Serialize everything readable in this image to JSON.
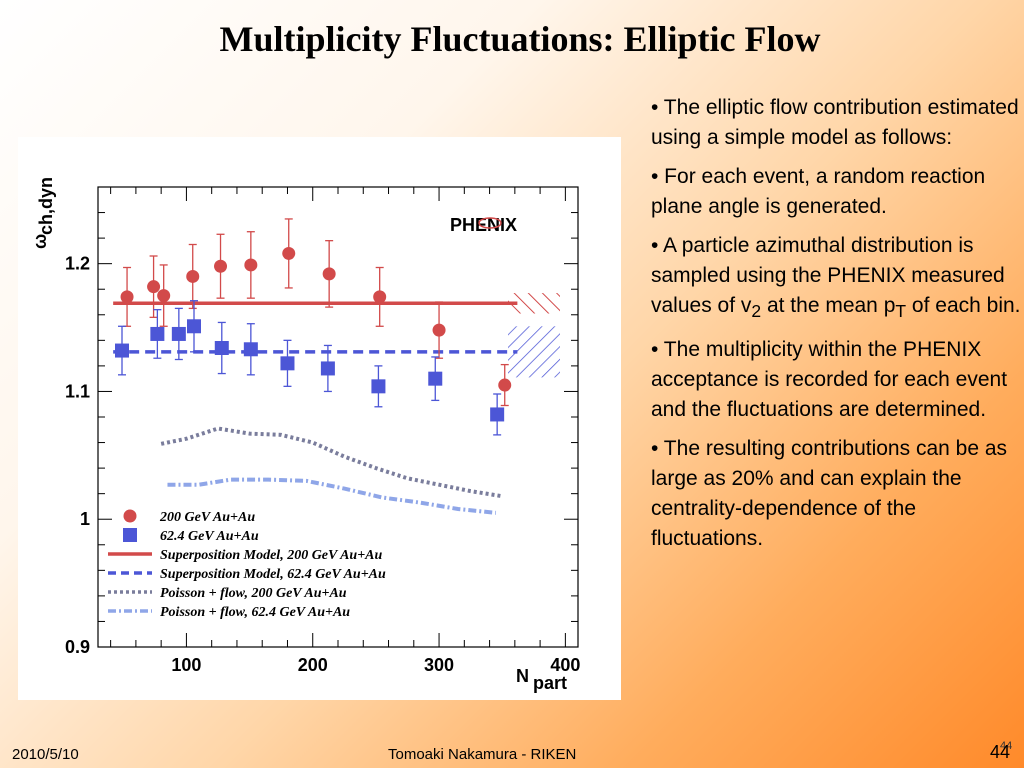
{
  "slide": {
    "title": "Multiplicity Fluctuations: Elliptic Flow",
    "bullets": [
      {
        "pre": "• The elliptic flow contribution estimated using a simple model as follows:"
      },
      {
        "pre": "• For each event, a random reaction plane angle is generated."
      },
      {
        "pre": "• A particle azimuthal distribution is sampled using the PHENIX measured values of v",
        "sub1": "2",
        "mid": " at the mean p",
        "sub2": "T",
        "post": " of each bin."
      },
      {
        "pre": "• The multiplicity within the PHENIX acceptance is recorded for each event and the fluctuations are determined."
      },
      {
        "pre": "• The resulting contributions can be as large as 20% and can explain the centrality-dependence of the fluctuations."
      }
    ],
    "footer": {
      "date": "2010/5/10",
      "author": "Tomoaki Nakamura - RIKEN",
      "page": "44",
      "page_small": "44"
    }
  },
  "chart_data": {
    "type": "scatter",
    "logo": "PHENIX",
    "xlabel": "N",
    "xlabel_sub": "part",
    "ylabel": "ω",
    "ylabel_sub": "ch,dyn",
    "xlim": [
      30,
      410
    ],
    "ylim": [
      0.9,
      1.26
    ],
    "x_ticks": [
      100,
      200,
      300,
      400
    ],
    "y_ticks": [
      0.9,
      1,
      1.1,
      1.2
    ],
    "y_tick_labels": [
      "0.9",
      "1",
      "1.1",
      "1.2"
    ],
    "colors": {
      "red": "#d24a4a",
      "blue": "#4c56d6",
      "grey_dash": "#7a7d9c",
      "light_blue": "#8fa6e8"
    },
    "series": [
      {
        "name": "200 GeV Au+Au",
        "marker": "circle",
        "x": [
          53,
          74,
          82,
          105,
          127,
          151,
          181,
          213,
          253,
          300,
          352
        ],
        "y": [
          1.174,
          1.182,
          1.175,
          1.19,
          1.198,
          1.199,
          1.208,
          1.192,
          1.174,
          1.148,
          1.105
        ],
        "err": [
          0.023,
          0.024,
          0.024,
          0.025,
          0.025,
          0.026,
          0.027,
          0.026,
          0.023,
          0.022,
          0.016
        ]
      },
      {
        "name": "62.4 GeV Au+Au",
        "marker": "square",
        "x": [
          49,
          77,
          94,
          106,
          128,
          151,
          180,
          212,
          252,
          297,
          346
        ],
        "y": [
          1.132,
          1.145,
          1.145,
          1.151,
          1.134,
          1.133,
          1.122,
          1.118,
          1.104,
          1.11,
          1.082
        ],
        "err": [
          0.019,
          0.019,
          0.02,
          0.02,
          0.02,
          0.02,
          0.018,
          0.018,
          0.016,
          0.017,
          0.016
        ]
      },
      {
        "name": "Superposition Model, 200 GeV Au+Au",
        "style": "solid-line",
        "x": [
          42,
          362
        ],
        "y": [
          1.169,
          1.169
        ]
      },
      {
        "name": "Superposition Model, 62.4 GeV Au+Au",
        "style": "dashed-line",
        "x": [
          42,
          362
        ],
        "y": [
          1.131,
          1.131
        ]
      },
      {
        "name": "Poisson + flow, 200 GeV Au+Au",
        "style": "dotted-line",
        "x": [
          80,
          100,
          125,
          150,
          175,
          200,
          225,
          250,
          275,
          300,
          325,
          350
        ],
        "y": [
          1.059,
          1.063,
          1.071,
          1.067,
          1.066,
          1.06,
          1.049,
          1.04,
          1.032,
          1.027,
          1.022,
          1.018
        ]
      },
      {
        "name": "Poisson + flow, 62.4 GeV Au+Au",
        "style": "dash-dot-line",
        "x": [
          85,
          110,
          135,
          165,
          195,
          225,
          255,
          285,
          315,
          345
        ],
        "y": [
          1.027,
          1.027,
          1.031,
          1.031,
          1.03,
          1.024,
          1.017,
          1.013,
          1.008,
          1.005
        ]
      }
    ],
    "legend_placement": "bottom-left"
  }
}
